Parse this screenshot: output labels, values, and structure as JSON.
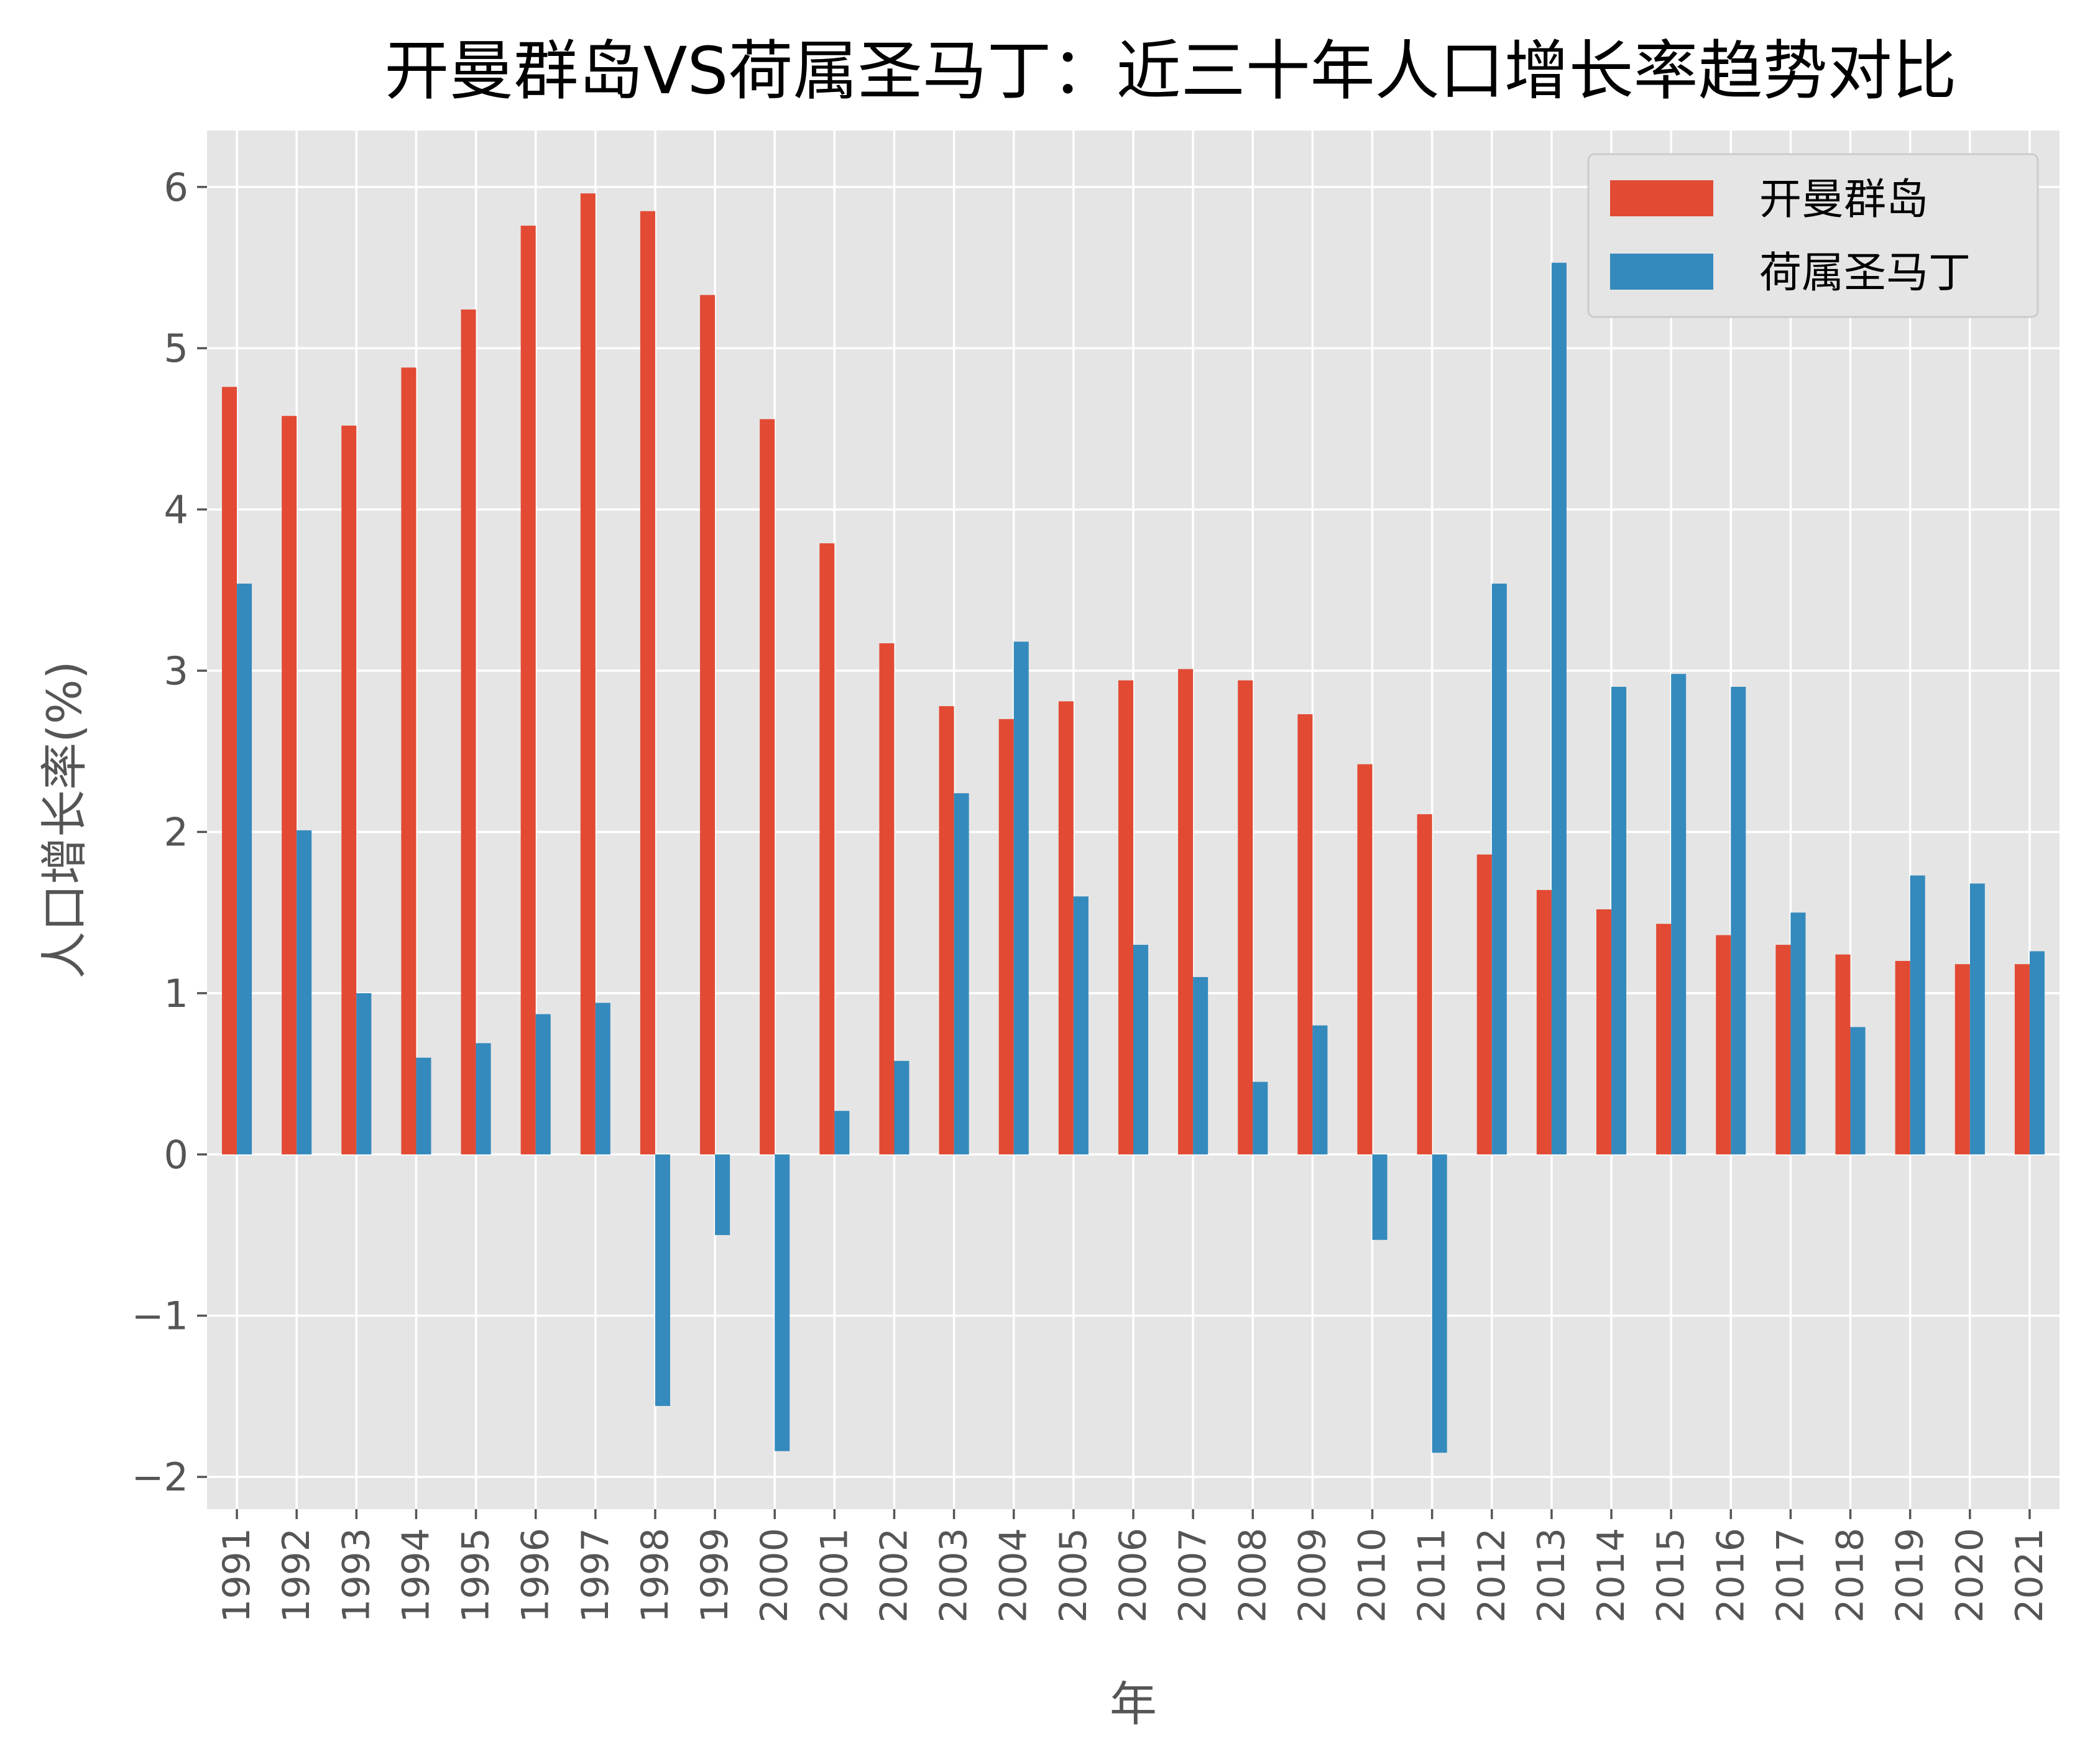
{
  "chart_data": {
    "type": "bar",
    "title": "开曼群岛VS荷属圣马丁：近三十年人口增长率趋势对比",
    "xlabel": "年",
    "ylabel": "人口增长率(%)",
    "ylim": [
      -2.2,
      6.35
    ],
    "yticks": [
      -2,
      -1,
      0,
      1,
      2,
      3,
      4,
      5,
      6
    ],
    "grid": true,
    "legend_position": "top-right",
    "categories": [
      "1991",
      "1992",
      "1993",
      "1994",
      "1995",
      "1996",
      "1997",
      "1998",
      "1999",
      "2000",
      "2001",
      "2002",
      "2003",
      "2004",
      "2005",
      "2006",
      "2007",
      "2008",
      "2009",
      "2010",
      "2011",
      "2012",
      "2013",
      "2014",
      "2015",
      "2016",
      "2017",
      "2018",
      "2019",
      "2020",
      "2021"
    ],
    "series": [
      {
        "name": "开曼群岛",
        "color": "#e24a33",
        "values": [
          4.76,
          4.58,
          4.52,
          4.88,
          5.24,
          5.76,
          5.96,
          5.85,
          5.33,
          4.56,
          3.79,
          3.17,
          2.78,
          2.7,
          2.81,
          2.94,
          3.01,
          2.94,
          2.73,
          2.42,
          2.11,
          1.86,
          1.64,
          1.52,
          1.43,
          1.36,
          1.3,
          1.24,
          1.2,
          1.18,
          1.18
        ]
      },
      {
        "name": "荷属圣马丁",
        "color": "#348abd",
        "values": [
          3.54,
          2.01,
          1.0,
          0.6,
          0.69,
          0.87,
          0.94,
          -1.56,
          -0.5,
          -1.84,
          0.27,
          0.58,
          2.24,
          3.18,
          1.6,
          1.3,
          1.1,
          0.45,
          0.8,
          -0.53,
          -1.85,
          3.54,
          5.53,
          2.9,
          2.98,
          2.9,
          1.5,
          0.79,
          1.73,
          1.68,
          1.26
        ]
      }
    ]
  }
}
